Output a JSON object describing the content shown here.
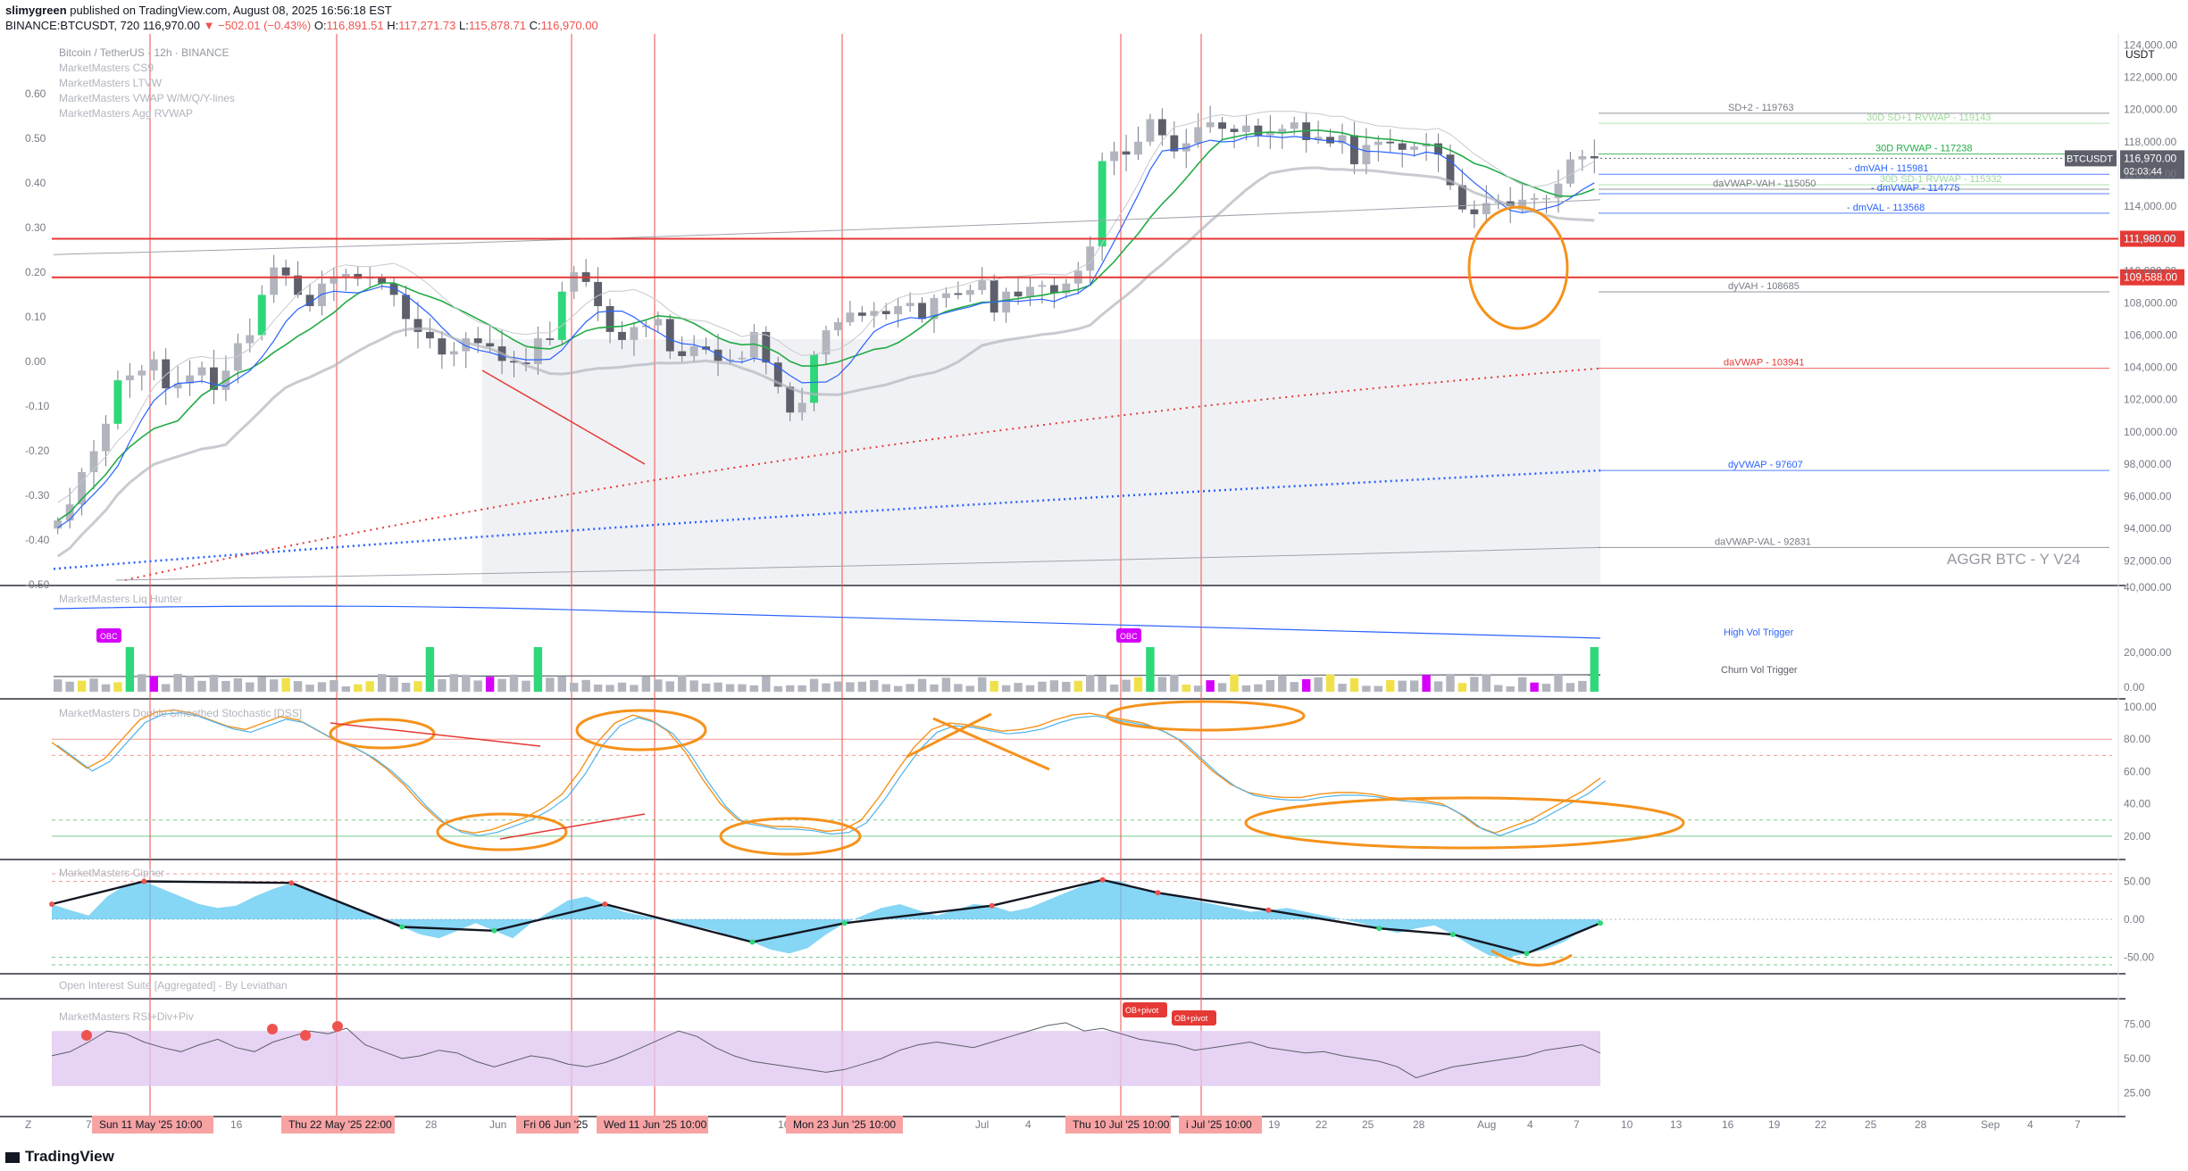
{
  "header": {
    "author": "slimygreen",
    "published": "published on TradingView.com, August 08, 2025 16:56:18 EST",
    "symbol": "BINANCE:BTCUSDT, 720",
    "last": "116,970.00",
    "change": "▼ −502.01 (−0.43%)",
    "ohlc_o_label": "O:",
    "ohlc_o": "116,891.51",
    "ohlc_h_label": "H:",
    "ohlc_h": "117,271.73",
    "ohlc_l_label": "L:",
    "ohlc_l": "115,878.71",
    "ohlc_c_label": "C:",
    "ohlc_c": "116,970.00"
  },
  "legend": {
    "title": "Bitcoin / TetherUS · 12h · BINANCE",
    "items": [
      "MarketMasters CS9",
      "MarketMasters LTVW",
      "MarketMasters VWAP W/M/Q/Y-lines",
      "MarketMasters Agg RVWAP"
    ]
  },
  "currency": "USDT",
  "watermark": "AGGR BTC - Y   V24",
  "ticker_badge": "BTCUSDT",
  "price_badge": "116,970.00",
  "countdown": "02:03:44",
  "brand": "TradingView",
  "colors": {
    "bull": "#26a69a",
    "bear": "#ef5350",
    "accent": "#2962ff",
    "orange": "#f5921b",
    "green": "#22ab46"
  },
  "chart_data": [
    {
      "type": "candlestick",
      "title": "Bitcoin / TetherUS · 12h · BINANCE",
      "ylim": [
        90800,
        124300
      ],
      "y_ticks": [
        "124,000.00",
        "122,000.00",
        "120,000.00",
        "118,000.00",
        "116,000.00",
        "114,000.00",
        "112,000.00",
        "110,000.00",
        "108,000.00",
        "106,000.00",
        "104,000.00",
        "102,000.00",
        "100,000.00",
        "98,000.00",
        "96,000.00",
        "94,000.00",
        "92,000.00"
      ],
      "left_ticks": [
        "0.60",
        "0.50",
        "0.40",
        "0.30",
        "0.20",
        "0.10",
        "0.00",
        "-0.10",
        "-0.20",
        "-0.30",
        "-0.40",
        "-0.50"
      ],
      "close_path": [
        94500,
        95500,
        97500,
        98800,
        100500,
        103200,
        103500,
        103800,
        104500,
        102700,
        103000,
        103500,
        104000,
        102600,
        103800,
        105500,
        106000,
        108500,
        110200,
        109700,
        108500,
        107800,
        109200,
        109600,
        109800,
        109500,
        109600,
        109200,
        108500,
        107000,
        106200,
        105800,
        104800,
        105000,
        105800,
        105500,
        105300,
        104400,
        104300,
        104200,
        105800,
        105700,
        108700,
        109900,
        109300,
        107800,
        106200,
        105700,
        106500,
        106600,
        107000,
        105000,
        104700,
        105300,
        105100,
        104400,
        104500,
        104600,
        106200,
        104300,
        102800,
        101200,
        101800,
        104800,
        106300,
        106800,
        107400,
        107200,
        107500,
        107300,
        107800,
        108000,
        107000,
        108300,
        108600,
        108500,
        108800,
        109400,
        107400,
        108700,
        108400,
        109000,
        109100,
        108600,
        109200,
        110000,
        111500,
        116800,
        117400,
        117200,
        118000,
        119400,
        118400,
        117400,
        117900,
        118900,
        119200,
        118800,
        118600,
        119000,
        118400,
        118600,
        118800,
        119200,
        118100,
        118300,
        117900,
        118400,
        116600,
        117800,
        118000,
        117900,
        117500,
        117700,
        117900,
        117200,
        115300,
        113800,
        113500,
        114200,
        114300,
        114000,
        114400,
        114500,
        114500,
        115400,
        116900,
        117100,
        116970
      ],
      "high": 123200,
      "low": 92700,
      "levels": [
        {
          "label": "SD+2 - 119763",
          "value": 119763,
          "color": "#787b86"
        },
        {
          "label": "30D SD+1 RVWAP - 119143",
          "value": 119143,
          "color": "#9fd99b"
        },
        {
          "label": "30D RVWAP - 117238",
          "value": 117238,
          "color": "#22ab46"
        },
        {
          "label": "- dmVAH - 115981",
          "value": 115981,
          "color": "#2962ff"
        },
        {
          "label": "- dmVWAP - 114775",
          "value": 114775,
          "color": "#2962ff"
        },
        {
          "label": "30D SD-1 RVWAP - 115332",
          "value": 115332,
          "color": "#9fd99b"
        },
        {
          "label": "daVWAP-VAH - 115050",
          "value": 115050,
          "color": "#787b86"
        },
        {
          "label": "- dmVAL - 113568",
          "value": 113568,
          "color": "#2962ff"
        },
        {
          "label": "dyVAH - 108685",
          "value": 108685,
          "color": "#787b86"
        },
        {
          "label": "daVWAP - 103941",
          "value": 103941,
          "color": "#e53935"
        },
        {
          "label": "dyVWAP - 97607",
          "value": 97607,
          "color": "#2962ff"
        },
        {
          "label": "daVWAP-VAL - 92831",
          "value": 92831,
          "color": "#787b86"
        }
      ],
      "horizontal_lines": [
        {
          "label": "111,980.00",
          "value": 111980
        },
        {
          "label": "109,588.00",
          "value": 109588
        }
      ]
    },
    {
      "type": "bar",
      "title": "MarketMasters Liq Hunter",
      "y_ticks": [
        "40,000.00",
        "20,000.00",
        "0.00"
      ],
      "markers": [
        "OBC",
        "OBC"
      ],
      "lines": [
        "High Vol Trigger",
        "Churn Vol Trigger"
      ]
    },
    {
      "type": "line",
      "title": "MarketMasters Double Smoothed Stochastic [DSS]",
      "y_ticks": [
        "100.00",
        "80.00",
        "60.00",
        "40.00",
        "20.00"
      ],
      "series": [
        {
          "values": [
            78,
            70,
            62,
            68,
            80,
            92,
            97,
            98,
            96,
            92,
            88,
            86,
            90,
            94,
            92,
            86,
            80,
            76,
            70,
            62,
            52,
            40,
            30,
            24,
            22,
            24,
            28,
            32,
            38,
            46,
            60,
            78,
            90,
            95,
            92,
            85,
            72,
            55,
            40,
            30,
            28,
            26,
            26,
            25,
            23,
            24,
            30,
            44,
            60,
            75,
            86,
            90,
            89,
            87,
            85,
            86,
            88,
            92,
            95,
            96,
            94,
            92,
            90,
            86,
            80,
            70,
            60,
            52,
            47,
            45,
            44,
            44,
            46,
            47,
            47,
            46,
            44,
            43,
            42,
            40,
            34,
            26,
            22,
            26,
            30,
            36,
            42,
            48,
            56
          ]
        }
      ]
    },
    {
      "type": "area",
      "title": "MarketMasters Cipher",
      "y_ticks": [
        "50.00",
        "0.00",
        "-50.00"
      ],
      "series": [
        {
          "values": [
            20,
            12,
            5,
            30,
            45,
            50,
            40,
            30,
            20,
            15,
            18,
            30,
            40,
            48,
            40,
            30,
            20,
            10,
            0,
            -10,
            -20,
            -25,
            -15,
            -5,
            -15,
            -25,
            -5,
            10,
            25,
            30,
            20,
            10,
            5,
            0,
            -5,
            -10,
            -15,
            -25,
            -30,
            -40,
            -45,
            -38,
            -20,
            -5,
            5,
            15,
            20,
            12,
            5,
            12,
            20,
            18,
            10,
            15,
            25,
            35,
            45,
            52,
            50,
            40,
            35,
            30,
            25,
            20,
            15,
            10,
            12,
            15,
            10,
            5,
            0,
            -5,
            -12,
            -18,
            -12,
            -8,
            -20,
            -35,
            -48,
            -50,
            -45,
            -40,
            -30,
            -15,
            -5
          ]
        }
      ]
    },
    {
      "type": "line",
      "title": "Open Interest Suite [Aggregated] - By Leviathan"
    },
    {
      "type": "line",
      "title": "MarketMasters RSI+Div+Piv",
      "y_ticks": [
        "75.00",
        "50.00",
        "25.00"
      ],
      "markers": [
        "OB+pivot",
        "OB+pivot"
      ],
      "series": [
        {
          "values": [
            52,
            55,
            62,
            70,
            68,
            62,
            58,
            55,
            60,
            64,
            58,
            55,
            62,
            66,
            70,
            68,
            72,
            60,
            55,
            50,
            52,
            56,
            54,
            48,
            44,
            48,
            52,
            50,
            46,
            44,
            47,
            52,
            58,
            64,
            70,
            66,
            58,
            52,
            48,
            46,
            44,
            42,
            40,
            42,
            46,
            50,
            56,
            60,
            62,
            60,
            58,
            62,
            66,
            70,
            74,
            76,
            70,
            72,
            68,
            64,
            62,
            60,
            56,
            58,
            60,
            62,
            58,
            56,
            54,
            55,
            52,
            50,
            48,
            44,
            36,
            40,
            44,
            46,
            48,
            50,
            52,
            56,
            58,
            60,
            54
          ]
        }
      ]
    }
  ],
  "x_axis": {
    "ticks": [
      "7",
      "16",
      "28",
      "Jun",
      "16",
      "Jul",
      "4",
      "19",
      "22",
      "25",
      "28",
      "Aug",
      "4",
      "7",
      "10",
      "13",
      "16",
      "19",
      "22",
      "25",
      "28",
      "Sep",
      "4",
      "7"
    ],
    "date_labels": [
      "Sun 11 May '25   10:00",
      "Thu 22 May '25   22:00",
      "Fri 06 Jun '25",
      "Wed 11 Jun '25   10:00",
      "Mon 23 Jun '25   10:00",
      "Thu 10 Jul '25   10:00",
      "i Jul '25   10:00"
    ],
    "z_label": "Z"
  }
}
